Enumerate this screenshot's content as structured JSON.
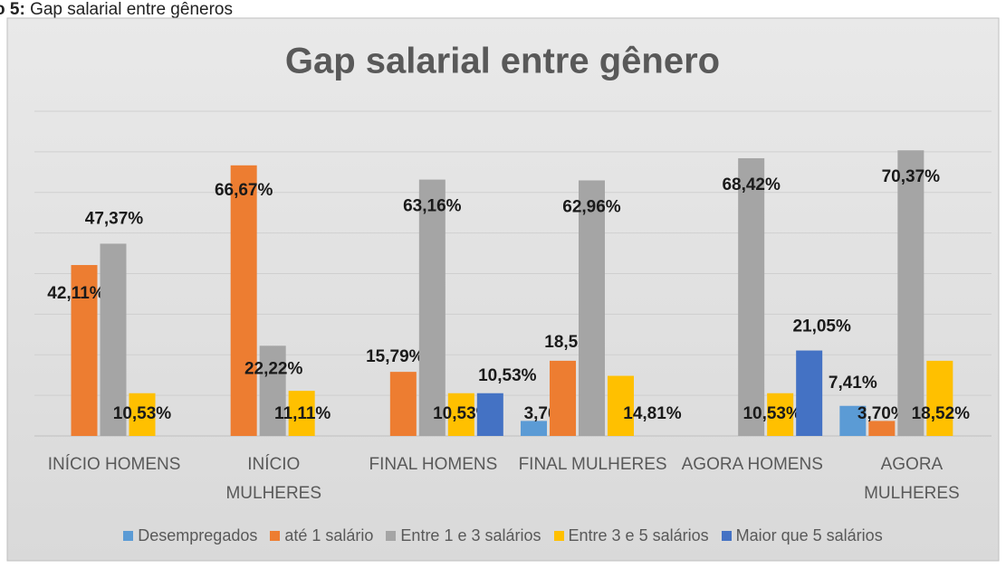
{
  "caption": {
    "label": "o 5:",
    "text": "Gap salarial entre gêneros"
  },
  "chart_data": {
    "type": "bar",
    "title": "Gap salarial entre gênero",
    "categories": [
      "INÍCIO HOMENS",
      "INÍCIO MULHERES",
      "FINAL HOMENS",
      "FINAL MULHERES",
      "AGORA HOMENS",
      "AGORA MULHERES"
    ],
    "series": [
      {
        "name": "Desempregados",
        "color": "#5b9bd5",
        "values": [
          null,
          null,
          null,
          3.7,
          null,
          7.41
        ],
        "value_labels": [
          null,
          null,
          null,
          "3,70%",
          null,
          "7,41%"
        ]
      },
      {
        "name": "até 1 salário",
        "color": "#ed7d31",
        "values": [
          42.11,
          66.67,
          15.79,
          18.52,
          null,
          3.7
        ],
        "value_labels": [
          "42,11%",
          "66,67%",
          "15,79%",
          "18,52%",
          null,
          "3,70%"
        ]
      },
      {
        "name": "Entre 1 e 3 salários",
        "color": "#a5a5a5",
        "values": [
          47.37,
          22.22,
          63.16,
          62.96,
          68.42,
          70.37
        ],
        "value_labels": [
          "47,37%",
          "22,22%",
          "63,16%",
          "62,96%",
          "68,42%",
          "70,37%"
        ]
      },
      {
        "name": "Entre 3 e 5 salários",
        "color": "#ffc000",
        "values": [
          10.53,
          11.11,
          10.53,
          14.81,
          10.53,
          18.52
        ],
        "value_labels": [
          "10,53%",
          "11,11%",
          "10,53%",
          "14,81%",
          "10,53%",
          "18,52%"
        ]
      },
      {
        "name": "Maior que 5 salários",
        "color": "#4472c4",
        "values": [
          null,
          null,
          10.53,
          null,
          21.05,
          null
        ],
        "value_labels": [
          null,
          null,
          "10,53%",
          null,
          "21,05%",
          null
        ]
      }
    ],
    "ylim": [
      0,
      80
    ],
    "yticks": [
      0,
      10,
      20,
      30,
      40,
      50,
      60,
      70,
      80
    ],
    "grid": true,
    "legend": "bottom"
  }
}
